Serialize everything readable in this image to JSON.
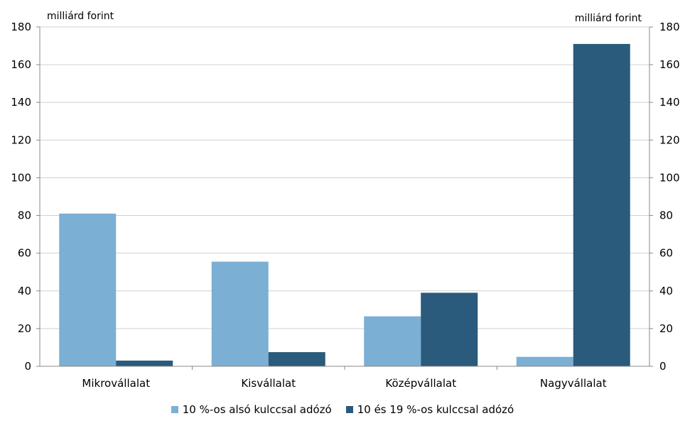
{
  "chart_data": {
    "type": "bar",
    "categories": [
      "Mikrovállalat",
      "Kisvállalat",
      "Középvállalat",
      "Nagyvállalat"
    ],
    "series": [
      {
        "name": "10 %-os alsó kulccsal adózó",
        "values": [
          81,
          55.5,
          26.5,
          5
        ],
        "color": "#7bafd4"
      },
      {
        "name": "10 és 19 %-os kulccsal adózó",
        "values": [
          3,
          7.5,
          39,
          171
        ],
        "color": "#2a5a7c"
      }
    ],
    "ylim": [
      0,
      180
    ],
    "yticks": [
      0,
      20,
      40,
      60,
      80,
      100,
      120,
      140,
      160,
      180
    ],
    "ylabel_left": "milliárd forint",
    "ylabel_right": "milliárd forint",
    "grid": true,
    "legend_position": "bottom"
  }
}
